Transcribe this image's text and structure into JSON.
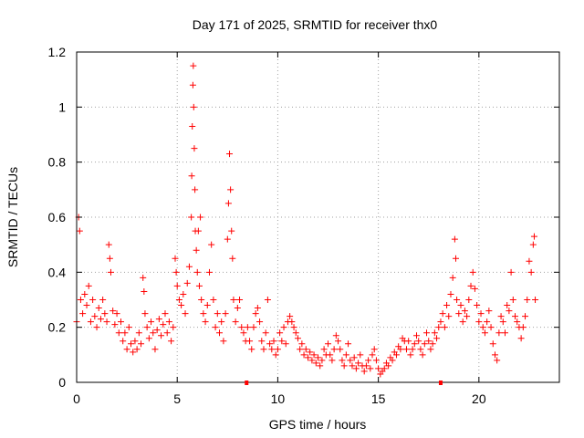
{
  "chart_data": {
    "type": "scatter",
    "title": "Day 171 of 2025, SRMTID for receiver thx0",
    "xlabel": "GPS time / hours",
    "ylabel": "SRMTID / TECUs",
    "xlim": [
      0,
      24
    ],
    "ylim": [
      0,
      1.2
    ],
    "x_ticks": [
      0,
      5,
      10,
      15,
      20
    ],
    "x_tick_labels": [
      "0",
      "5",
      "10",
      "15",
      "20"
    ],
    "y_ticks": [
      0,
      0.2,
      0.4,
      0.6,
      0.8,
      1.0,
      1.2
    ],
    "y_tick_labels": [
      "0",
      "0.2",
      "0.4",
      "0.6",
      "0.8",
      "1",
      "1.2"
    ],
    "grid": true,
    "marker": "+",
    "color": "#ff0000",
    "gap_markers_x": [
      8.45,
      18.1
    ],
    "series": [
      {
        "name": "thx0",
        "points": [
          [
            0.0,
            0.22
          ],
          [
            0.1,
            0.6
          ],
          [
            0.15,
            0.55
          ],
          [
            0.2,
            0.3
          ],
          [
            0.3,
            0.25
          ],
          [
            0.4,
            0.32
          ],
          [
            0.5,
            0.28
          ],
          [
            0.6,
            0.35
          ],
          [
            0.7,
            0.22
          ],
          [
            0.8,
            0.3
          ],
          [
            0.9,
            0.24
          ],
          [
            1.0,
            0.2
          ],
          [
            1.1,
            0.27
          ],
          [
            1.2,
            0.23
          ],
          [
            1.3,
            0.3
          ],
          [
            1.4,
            0.25
          ],
          [
            1.5,
            0.22
          ],
          [
            1.6,
            0.5
          ],
          [
            1.65,
            0.45
          ],
          [
            1.7,
            0.4
          ],
          [
            1.8,
            0.26
          ],
          [
            1.9,
            0.21
          ],
          [
            2.0,
            0.25
          ],
          [
            2.1,
            0.18
          ],
          [
            2.2,
            0.22
          ],
          [
            2.3,
            0.15
          ],
          [
            2.4,
            0.18
          ],
          [
            2.5,
            0.12
          ],
          [
            2.6,
            0.2
          ],
          [
            2.7,
            0.14
          ],
          [
            2.8,
            0.11
          ],
          [
            2.9,
            0.15
          ],
          [
            3.0,
            0.12
          ],
          [
            3.1,
            0.18
          ],
          [
            3.2,
            0.14
          ],
          [
            3.3,
            0.38
          ],
          [
            3.35,
            0.33
          ],
          [
            3.4,
            0.25
          ],
          [
            3.5,
            0.2
          ],
          [
            3.6,
            0.16
          ],
          [
            3.7,
            0.22
          ],
          [
            3.8,
            0.18
          ],
          [
            3.9,
            0.12
          ],
          [
            4.0,
            0.19
          ],
          [
            4.1,
            0.23
          ],
          [
            4.2,
            0.17
          ],
          [
            4.3,
            0.21
          ],
          [
            4.4,
            0.25
          ],
          [
            4.5,
            0.18
          ],
          [
            4.6,
            0.22
          ],
          [
            4.7,
            0.15
          ],
          [
            4.8,
            0.2
          ],
          [
            4.9,
            0.45
          ],
          [
            4.95,
            0.4
          ],
          [
            5.0,
            0.35
          ],
          [
            5.1,
            0.3
          ],
          [
            5.2,
            0.28
          ],
          [
            5.3,
            0.32
          ],
          [
            5.4,
            0.25
          ],
          [
            5.5,
            0.36
          ],
          [
            5.6,
            0.42
          ],
          [
            5.7,
            0.6
          ],
          [
            5.72,
            0.75
          ],
          [
            5.75,
            0.93
          ],
          [
            5.78,
            1.08
          ],
          [
            5.8,
            1.15
          ],
          [
            5.82,
            1.0
          ],
          [
            5.85,
            0.85
          ],
          [
            5.88,
            0.7
          ],
          [
            5.9,
            0.55
          ],
          [
            5.95,
            0.48
          ],
          [
            6.0,
            0.4
          ],
          [
            6.05,
            0.55
          ],
          [
            6.1,
            0.35
          ],
          [
            6.15,
            0.6
          ],
          [
            6.2,
            0.3
          ],
          [
            6.3,
            0.25
          ],
          [
            6.4,
            0.22
          ],
          [
            6.5,
            0.28
          ],
          [
            6.6,
            0.4
          ],
          [
            6.7,
            0.5
          ],
          [
            6.8,
            0.3
          ],
          [
            6.9,
            0.2
          ],
          [
            7.0,
            0.25
          ],
          [
            7.1,
            0.18
          ],
          [
            7.2,
            0.22
          ],
          [
            7.3,
            0.15
          ],
          [
            7.4,
            0.25
          ],
          [
            7.5,
            0.52
          ],
          [
            7.55,
            0.65
          ],
          [
            7.6,
            0.83
          ],
          [
            7.65,
            0.7
          ],
          [
            7.7,
            0.55
          ],
          [
            7.75,
            0.45
          ],
          [
            7.8,
            0.3
          ],
          [
            7.9,
            0.22
          ],
          [
            8.0,
            0.27
          ],
          [
            8.1,
            0.3
          ],
          [
            8.2,
            0.2
          ],
          [
            8.3,
            0.18
          ],
          [
            8.4,
            0.15
          ],
          [
            8.5,
            0.2
          ],
          [
            8.6,
            0.15
          ],
          [
            8.7,
            0.12
          ],
          [
            8.8,
            0.2
          ],
          [
            8.9,
            0.25
          ],
          [
            9.0,
            0.27
          ],
          [
            9.1,
            0.22
          ],
          [
            9.2,
            0.15
          ],
          [
            9.3,
            0.12
          ],
          [
            9.4,
            0.18
          ],
          [
            9.5,
            0.3
          ],
          [
            9.6,
            0.14
          ],
          [
            9.7,
            0.12
          ],
          [
            9.8,
            0.15
          ],
          [
            9.9,
            0.1
          ],
          [
            10.0,
            0.12
          ],
          [
            10.1,
            0.18
          ],
          [
            10.2,
            0.15
          ],
          [
            10.3,
            0.2
          ],
          [
            10.4,
            0.14
          ],
          [
            10.5,
            0.22
          ],
          [
            10.6,
            0.24
          ],
          [
            10.7,
            0.22
          ],
          [
            10.8,
            0.2
          ],
          [
            10.9,
            0.18
          ],
          [
            11.0,
            0.16
          ],
          [
            11.1,
            0.12
          ],
          [
            11.2,
            0.14
          ],
          [
            11.3,
            0.1
          ],
          [
            11.4,
            0.12
          ],
          [
            11.5,
            0.09
          ],
          [
            11.6,
            0.11
          ],
          [
            11.7,
            0.08
          ],
          [
            11.8,
            0.1
          ],
          [
            11.9,
            0.07
          ],
          [
            12.0,
            0.09
          ],
          [
            12.1,
            0.06
          ],
          [
            12.2,
            0.08
          ],
          [
            12.3,
            0.12
          ],
          [
            12.4,
            0.1
          ],
          [
            12.5,
            0.14
          ],
          [
            12.6,
            0.1
          ],
          [
            12.7,
            0.08
          ],
          [
            12.8,
            0.12
          ],
          [
            12.9,
            0.17
          ],
          [
            13.0,
            0.15
          ],
          [
            13.1,
            0.12
          ],
          [
            13.2,
            0.08
          ],
          [
            13.3,
            0.06
          ],
          [
            13.4,
            0.1
          ],
          [
            13.5,
            0.14
          ],
          [
            13.6,
            0.08
          ],
          [
            13.7,
            0.06
          ],
          [
            13.8,
            0.09
          ],
          [
            13.9,
            0.05
          ],
          [
            14.0,
            0.07
          ],
          [
            14.1,
            0.1
          ],
          [
            14.2,
            0.06
          ],
          [
            14.3,
            0.04
          ],
          [
            14.4,
            0.06
          ],
          [
            14.5,
            0.08
          ],
          [
            14.6,
            0.05
          ],
          [
            14.7,
            0.1
          ],
          [
            14.8,
            0.12
          ],
          [
            14.9,
            0.08
          ],
          [
            15.0,
            0.05
          ],
          [
            15.1,
            0.03
          ],
          [
            15.2,
            0.04
          ],
          [
            15.3,
            0.05
          ],
          [
            15.4,
            0.07
          ],
          [
            15.5,
            0.06
          ],
          [
            15.6,
            0.09
          ],
          [
            15.7,
            0.08
          ],
          [
            15.8,
            0.11
          ],
          [
            15.9,
            0.1
          ],
          [
            16.0,
            0.13
          ],
          [
            16.1,
            0.12
          ],
          [
            16.2,
            0.16
          ],
          [
            16.3,
            0.15
          ],
          [
            16.4,
            0.12
          ],
          [
            16.5,
            0.15
          ],
          [
            16.6,
            0.1
          ],
          [
            16.7,
            0.12
          ],
          [
            16.8,
            0.14
          ],
          [
            16.9,
            0.17
          ],
          [
            17.0,
            0.15
          ],
          [
            17.1,
            0.12
          ],
          [
            17.2,
            0.1
          ],
          [
            17.3,
            0.14
          ],
          [
            17.4,
            0.18
          ],
          [
            17.5,
            0.15
          ],
          [
            17.6,
            0.12
          ],
          [
            17.7,
            0.14
          ],
          [
            17.8,
            0.18
          ],
          [
            17.9,
            0.16
          ],
          [
            18.0,
            0.2
          ],
          [
            18.1,
            0.22
          ],
          [
            18.2,
            0.25
          ],
          [
            18.3,
            0.2
          ],
          [
            18.4,
            0.28
          ],
          [
            18.5,
            0.24
          ],
          [
            18.6,
            0.32
          ],
          [
            18.7,
            0.38
          ],
          [
            18.8,
            0.52
          ],
          [
            18.85,
            0.45
          ],
          [
            18.9,
            0.3
          ],
          [
            19.0,
            0.25
          ],
          [
            19.1,
            0.28
          ],
          [
            19.2,
            0.22
          ],
          [
            19.3,
            0.26
          ],
          [
            19.4,
            0.24
          ],
          [
            19.5,
            0.3
          ],
          [
            19.6,
            0.35
          ],
          [
            19.7,
            0.4
          ],
          [
            19.8,
            0.34
          ],
          [
            19.9,
            0.28
          ],
          [
            20.0,
            0.22
          ],
          [
            20.1,
            0.25
          ],
          [
            20.2,
            0.2
          ],
          [
            20.3,
            0.18
          ],
          [
            20.4,
            0.22
          ],
          [
            20.5,
            0.26
          ],
          [
            20.6,
            0.2
          ],
          [
            20.7,
            0.14
          ],
          [
            20.8,
            0.1
          ],
          [
            20.9,
            0.08
          ],
          [
            21.0,
            0.18
          ],
          [
            21.1,
            0.24
          ],
          [
            21.2,
            0.22
          ],
          [
            21.3,
            0.18
          ],
          [
            21.4,
            0.28
          ],
          [
            21.5,
            0.26
          ],
          [
            21.6,
            0.4
          ],
          [
            21.7,
            0.3
          ],
          [
            21.8,
            0.24
          ],
          [
            21.9,
            0.22
          ],
          [
            22.0,
            0.2
          ],
          [
            22.1,
            0.16
          ],
          [
            22.2,
            0.2
          ],
          [
            22.3,
            0.24
          ],
          [
            22.4,
            0.3
          ],
          [
            22.5,
            0.44
          ],
          [
            22.6,
            0.4
          ],
          [
            22.7,
            0.5
          ],
          [
            22.75,
            0.53
          ],
          [
            22.8,
            0.3
          ]
        ]
      }
    ]
  }
}
